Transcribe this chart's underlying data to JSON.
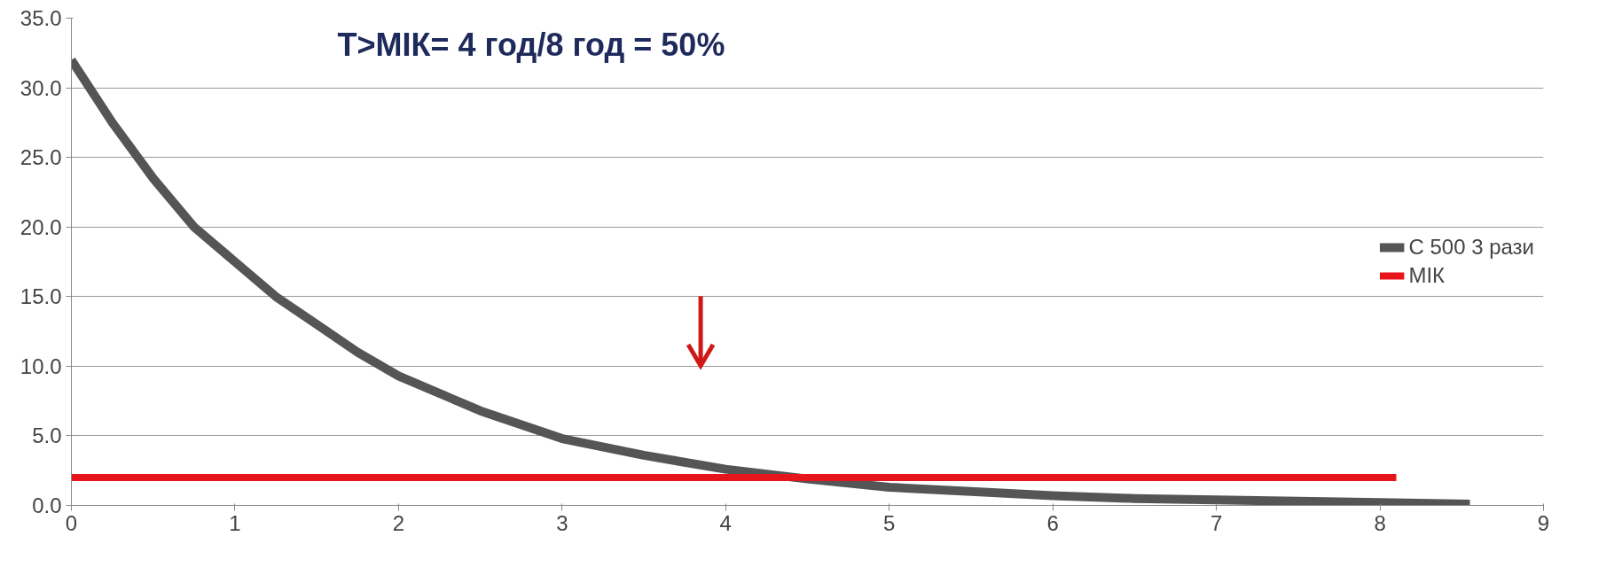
{
  "chart_data": {
    "type": "line",
    "annotations": [
      "T>МІК= 4 год/8 год = 50%"
    ],
    "series": [
      {
        "name": "С 500 3 рази",
        "color": "#555555",
        "x": [
          0,
          0.25,
          0.5,
          0.75,
          1,
          1.25,
          1.5,
          1.75,
          2,
          2.5,
          3,
          3.5,
          4,
          4.5,
          5,
          5.5,
          6,
          6.5,
          7,
          7.5,
          8,
          8.55
        ],
        "values": [
          32,
          27.5,
          23.5,
          20,
          17.5,
          15,
          13,
          11,
          9.3,
          6.8,
          4.8,
          3.6,
          2.6,
          1.9,
          1.3,
          1.0,
          0.7,
          0.5,
          0.4,
          0.3,
          0.2,
          0.1
        ]
      },
      {
        "name": "МІК",
        "color": "#e8141c",
        "x": [
          0,
          8.1
        ],
        "values": [
          2,
          2
        ]
      }
    ],
    "xlim": [
      0,
      9
    ],
    "xticks": [
      0,
      1,
      2,
      3,
      4,
      5,
      6,
      7,
      8,
      9
    ],
    "ylim": [
      0,
      35
    ],
    "yticks": [
      {
        "value": 0,
        "label": "0.0"
      },
      {
        "value": 5,
        "label": "5.0"
      },
      {
        "value": 10,
        "label": "10.0"
      },
      {
        "value": 15,
        "label": "15.0"
      },
      {
        "value": 20,
        "label": "20.0"
      },
      {
        "value": 25,
        "label": "25.0"
      },
      {
        "value": 30,
        "label": "30.0"
      },
      {
        "value": 35,
        "label": "35.0"
      }
    ],
    "grid": "y",
    "legend": "right",
    "marker": "none",
    "line_style": "solid"
  }
}
